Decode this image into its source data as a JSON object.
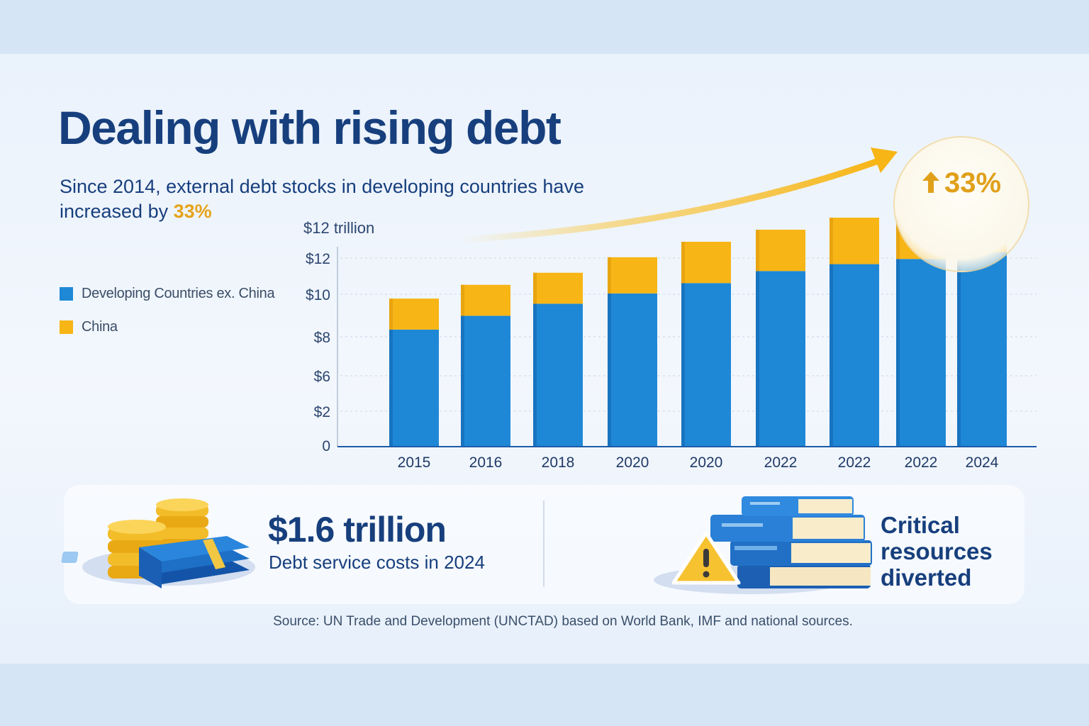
{
  "header": {
    "title": "Dealing with rising debt",
    "subtitle_pre": "Since 2014, external debt stocks in developing countries have increased by ",
    "subtitle_highlight": "33%"
  },
  "badge": {
    "label": "33%",
    "icon": "up-arrow-icon"
  },
  "legend": [
    {
      "label": "Developing Countries ex. China",
      "color": "#1e88d6"
    },
    {
      "label": "China",
      "color": "#f7b516"
    }
  ],
  "chart_data": {
    "type": "bar",
    "stacked": true,
    "unit_label": "$12 trillion",
    "categories": [
      "2015",
      "2016",
      "2018",
      "2020",
      "2020",
      "2022",
      "2022",
      "2022",
      "2024"
    ],
    "series": [
      {
        "name": "Developing Countries ex. China",
        "color": "#1e88d6",
        "values": [
          6.8,
          7.6,
          8.3,
          8.9,
          9.5,
          10.2,
          10.6,
          10.9,
          11.3
        ]
      },
      {
        "name": "China",
        "color": "#f7b516",
        "values": [
          1.8,
          1.8,
          1.8,
          2.1,
          2.4,
          2.4,
          2.7,
          3.0,
          3.0
        ]
      }
    ],
    "ylabels": [
      "0",
      "$2",
      "$6",
      "$8",
      "$10",
      "$12"
    ],
    "ylim": [
      0,
      14
    ],
    "grid": true,
    "legend_position": "left"
  },
  "stats": {
    "debt_service_value": "$1.6 trillion",
    "debt_service_label": "Debt service costs in 2024",
    "impact_label": "Critical resources diverted"
  },
  "illustrations": {
    "left": "coins-and-cash-icon",
    "right": "books-with-warning-icon"
  },
  "source": "Source: UN Trade and Development (UNCTAD) based on World Bank, IMF and national sources."
}
